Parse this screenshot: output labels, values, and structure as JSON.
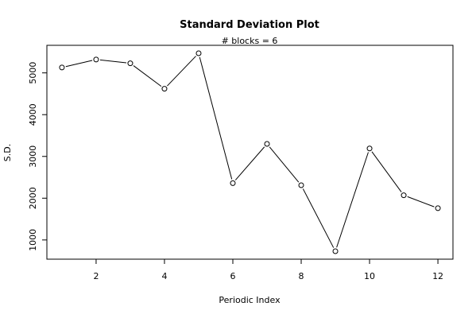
{
  "chart_data": {
    "type": "line",
    "title": "Standard Deviation Plot",
    "subtitle": "# blocks =  6",
    "xlabel": "Periodic Index",
    "ylabel": "S.D.",
    "x": [
      1,
      2,
      3,
      4,
      5,
      6,
      7,
      8,
      9,
      10,
      11,
      12
    ],
    "series": [
      {
        "values": [
          5130,
          5320,
          5230,
          4620,
          5470,
          2360,
          3300,
          2310,
          730,
          3190,
          2070,
          1760
        ]
      }
    ],
    "xlim": [
      0.56,
      12.44
    ],
    "ylim": [
      540,
      5660
    ],
    "x_ticks": [
      2,
      4,
      6,
      8,
      10,
      12
    ],
    "y_ticks": [
      1000,
      2000,
      3000,
      4000,
      5000
    ],
    "grid": false,
    "markers": "open-circle",
    "line_color": "#000000"
  }
}
